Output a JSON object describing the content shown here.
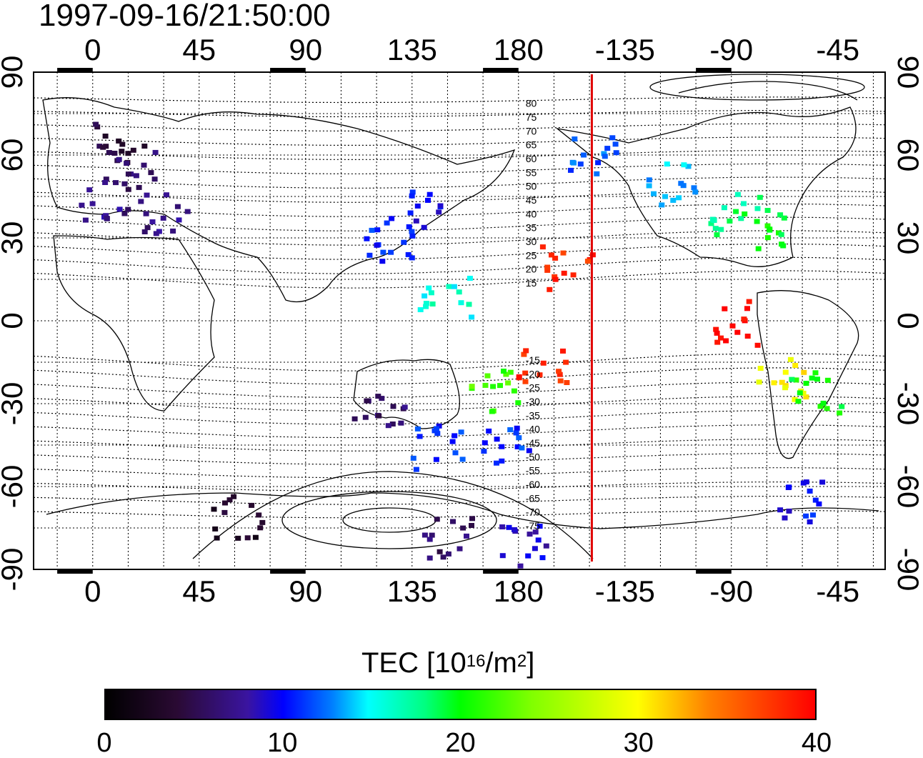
{
  "timestamp": "1997-09-16/21:50:00",
  "map": {
    "top_lon_ticks": [
      "0",
      "45",
      "90",
      "135",
      "180",
      "-135",
      "-90",
      "-45"
    ],
    "bottom_lon_ticks": [
      "0",
      "45",
      "90",
      "135",
      "180",
      "-135",
      "-90",
      "-45"
    ],
    "left_lat_ticks": [
      "90",
      "60",
      "30",
      "0",
      "-30",
      "-60",
      "-90"
    ],
    "right_lat_ticks": [
      "90",
      "60",
      "30",
      "0",
      "-30",
      "-60",
      "-90"
    ],
    "lon_range": [
      -25,
      335
    ],
    "lat_range": [
      -90,
      90
    ],
    "grid_step_deg": 15,
    "terminator_line": {
      "longitude": 211,
      "color": "#e00000"
    },
    "magnetic_latitude_labels": [
      "80",
      "75",
      "70",
      "65",
      "60",
      "55",
      "50",
      "45",
      "40",
      "35",
      "30",
      "25",
      "20",
      "15",
      "-15",
      "-20",
      "-25",
      "-30",
      "-35",
      "-40",
      "-45",
      "-50",
      "-55",
      "-60",
      "-65",
      "-70",
      "-75"
    ]
  },
  "colorbar": {
    "title_prefix": "TEC  [10",
    "title_exp1": "16",
    "title_mid": "/m",
    "title_exp2": "2",
    "title_suffix": "]",
    "ticks": [
      "0",
      "10",
      "20",
      "30",
      "40"
    ],
    "range": [
      0,
      40
    ],
    "colors": [
      "#000000",
      "#3a14a0",
      "#0000ff",
      "#00ffff",
      "#00ff00",
      "#ffff00",
      "#ff0000"
    ]
  },
  "tec_clusters": [
    {
      "lon": 10,
      "lat": 65,
      "tec": 4
    },
    {
      "lon": 15,
      "lat": 55,
      "tec": 6
    },
    {
      "lon": 5,
      "lat": 45,
      "tec": 7
    },
    {
      "lon": 30,
      "lat": 40,
      "tec": 7
    },
    {
      "lon": 135,
      "lat": 40,
      "tec": 10
    },
    {
      "lon": 125,
      "lat": 30,
      "tec": 11
    },
    {
      "lon": 210,
      "lat": 60,
      "tec": 12
    },
    {
      "lon": 245,
      "lat": 50,
      "tec": 14
    },
    {
      "lon": 270,
      "lat": 40,
      "tec": 18
    },
    {
      "lon": 285,
      "lat": 35,
      "tec": 20
    },
    {
      "lon": 200,
      "lat": 20,
      "tec": 38
    },
    {
      "lon": 148,
      "lat": 10,
      "tec": 16
    },
    {
      "lon": 270,
      "lat": 0,
      "tec": 40
    },
    {
      "lon": 168,
      "lat": -25,
      "tec": 22
    },
    {
      "lon": 190,
      "lat": -15,
      "tec": 38
    },
    {
      "lon": 290,
      "lat": -20,
      "tec": 30
    },
    {
      "lon": 305,
      "lat": -25,
      "tec": 20
    },
    {
      "lon": 120,
      "lat": -30,
      "tec": 6
    },
    {
      "lon": 175,
      "lat": -45,
      "tec": 11
    },
    {
      "lon": 145,
      "lat": -45,
      "tec": 11
    },
    {
      "lon": 60,
      "lat": -70,
      "tec": 3
    },
    {
      "lon": 150,
      "lat": -78,
      "tec": 6
    },
    {
      "lon": 180,
      "lat": -80,
      "tec": 9
    },
    {
      "lon": 300,
      "lat": -65,
      "tec": 10
    }
  ]
}
